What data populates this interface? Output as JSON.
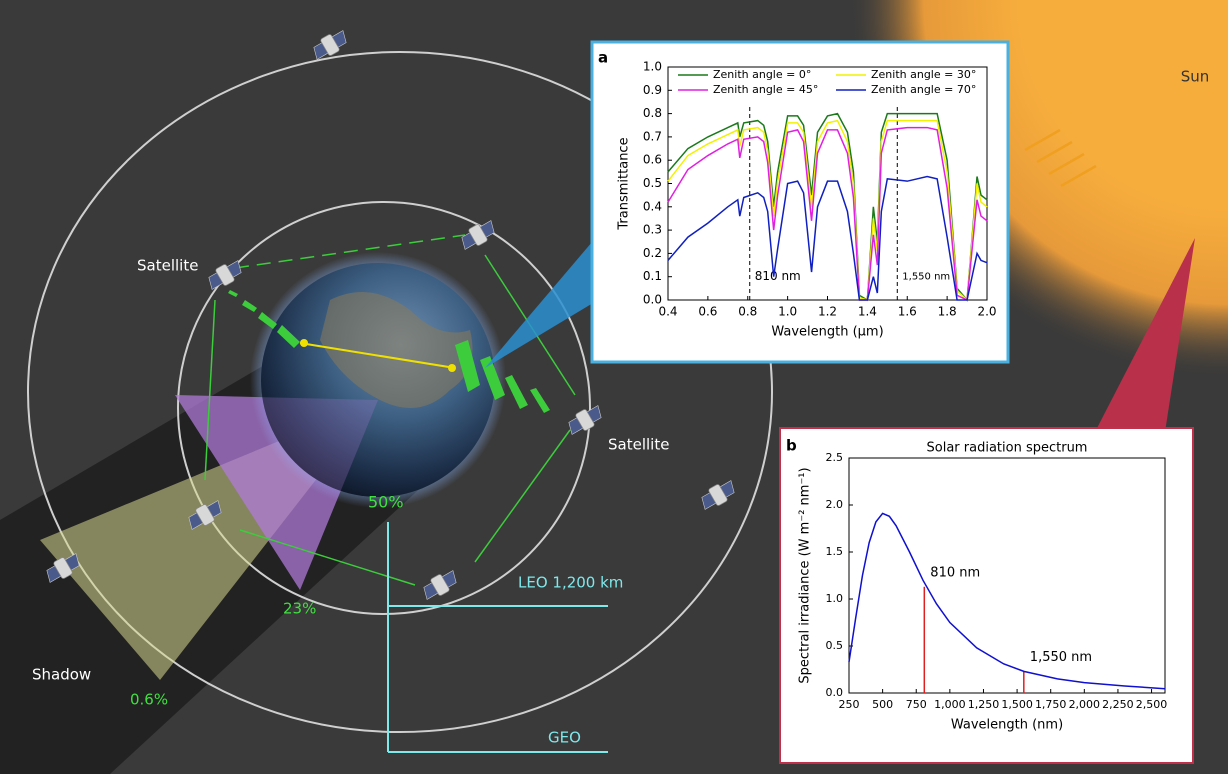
{
  "diagram": {
    "sun": "Sun",
    "satellite_left": "Satellite",
    "satellite_right": "Satellite",
    "shadow": "Shadow",
    "pct_50": "50%",
    "pct_23": "23%",
    "pct_06": "0.6%",
    "leo": "LEO 1,200 km",
    "geo": "GEO"
  },
  "chart_data": [
    {
      "type": "line",
      "panel_label": "a",
      "x_label": "Wavelength (μm)",
      "y_label": "Transmittance",
      "x": [
        0.4,
        0.5,
        0.6,
        0.7,
        0.75,
        0.76,
        0.78,
        0.85,
        0.88,
        0.9,
        0.93,
        0.95,
        1.0,
        1.05,
        1.08,
        1.12,
        1.15,
        1.2,
        1.25,
        1.3,
        1.33,
        1.36,
        1.4,
        1.43,
        1.45,
        1.47,
        1.5,
        1.6,
        1.7,
        1.75,
        1.8,
        1.85,
        1.9,
        1.95,
        1.97,
        2.0
      ],
      "series": [
        {
          "name": "Zenith angle = 0°",
          "color": "#1a7a1a",
          "values": [
            0.55,
            0.65,
            0.7,
            0.74,
            0.76,
            0.7,
            0.76,
            0.77,
            0.75,
            0.68,
            0.4,
            0.55,
            0.79,
            0.79,
            0.75,
            0.45,
            0.72,
            0.79,
            0.8,
            0.72,
            0.55,
            0.02,
            0.0,
            0.4,
            0.25,
            0.72,
            0.8,
            0.8,
            0.8,
            0.8,
            0.6,
            0.05,
            0.0,
            0.53,
            0.45,
            0.43
          ]
        },
        {
          "name": "Zenith angle = 30°",
          "color": "#f2f200",
          "values": [
            0.51,
            0.62,
            0.67,
            0.71,
            0.73,
            0.66,
            0.73,
            0.74,
            0.72,
            0.64,
            0.36,
            0.51,
            0.76,
            0.76,
            0.72,
            0.4,
            0.68,
            0.76,
            0.77,
            0.68,
            0.5,
            0.01,
            0.0,
            0.35,
            0.21,
            0.68,
            0.77,
            0.77,
            0.77,
            0.77,
            0.55,
            0.04,
            0.0,
            0.5,
            0.42,
            0.4
          ]
        },
        {
          "name": "Zenith angle = 45°",
          "color": "#e020e0",
          "values": [
            0.42,
            0.56,
            0.62,
            0.67,
            0.69,
            0.61,
            0.69,
            0.7,
            0.68,
            0.59,
            0.3,
            0.45,
            0.72,
            0.73,
            0.68,
            0.34,
            0.63,
            0.73,
            0.73,
            0.63,
            0.44,
            0.0,
            0.0,
            0.28,
            0.15,
            0.63,
            0.73,
            0.74,
            0.74,
            0.73,
            0.48,
            0.02,
            0.0,
            0.43,
            0.36,
            0.34
          ]
        },
        {
          "name": "Zenith angle = 70°",
          "color": "#1020c0",
          "values": [
            0.17,
            0.27,
            0.33,
            0.4,
            0.43,
            0.36,
            0.44,
            0.46,
            0.44,
            0.38,
            0.1,
            0.22,
            0.5,
            0.51,
            0.46,
            0.12,
            0.4,
            0.51,
            0.51,
            0.38,
            0.2,
            0.0,
            0.0,
            0.1,
            0.03,
            0.38,
            0.52,
            0.51,
            0.53,
            0.52,
            0.27,
            0.0,
            0.0,
            0.2,
            0.17,
            0.16
          ]
        }
      ],
      "annotations": [
        {
          "x": 0.81,
          "label": "810 nm"
        },
        {
          "x": 1.55,
          "label": "1,550 nm"
        }
      ],
      "xlim": [
        0.4,
        2.0
      ],
      "ylim": [
        0.0,
        1.0
      ],
      "xticks": [
        0.4,
        0.6,
        0.8,
        {
          "value": 1.0,
          "label": "1.0"
        },
        1.2,
        1.4,
        1.6,
        1.8,
        {
          "value": 2.0,
          "label": "2.0"
        }
      ],
      "yticks": [
        {
          "value": 0.0,
          "label": "0.0"
        },
        0.1,
        0.2,
        0.3,
        0.4,
        0.5,
        0.6,
        0.7,
        0.8,
        0.9,
        {
          "value": 1.0,
          "label": "1.0"
        }
      ]
    },
    {
      "type": "line",
      "panel_label": "b",
      "title": "Solar radiation spectrum",
      "x_label": "Wavelength (nm)",
      "y_label": "Spectral irradiance (W m⁻² nm⁻¹)",
      "x": [
        250,
        300,
        350,
        400,
        450,
        500,
        550,
        600,
        700,
        800,
        900,
        1000,
        1200,
        1400,
        1550,
        1800,
        2000,
        2300,
        2600
      ],
      "series": [
        {
          "color": "#1010d0",
          "values": [
            0.33,
            0.8,
            1.25,
            1.6,
            1.82,
            1.91,
            1.88,
            1.78,
            1.5,
            1.2,
            0.95,
            0.75,
            0.48,
            0.31,
            0.23,
            0.15,
            0.11,
            0.075,
            0.045
          ]
        }
      ],
      "annotations": [
        {
          "x": 810,
          "y": 1.13,
          "label": "810 nm"
        },
        {
          "x": 1550,
          "y": 0.23,
          "label": "1,550 nm"
        }
      ],
      "xlim": [
        250,
        2600
      ],
      "ylim": [
        0.0,
        2.5
      ],
      "xticks": [
        250,
        500,
        750,
        {
          "value": 1000,
          "label": "1,000"
        },
        {
          "value": 1250,
          "label": "1,250"
        },
        {
          "value": 1500,
          "label": "1,500"
        },
        {
          "value": 1750,
          "label": "1,750"
        },
        {
          "value": 2000,
          "label": "2,000"
        },
        {
          "value": 2250,
          "label": "2,250"
        },
        {
          "value": 2500,
          "label": "2,500"
        }
      ],
      "yticks": [
        {
          "value": 0.0,
          "label": "0.0"
        },
        0.5,
        {
          "value": 1.0,
          "label": "1.0"
        },
        1.5,
        {
          "value": 2.0,
          "label": "2.0"
        },
        2.5
      ]
    }
  ]
}
